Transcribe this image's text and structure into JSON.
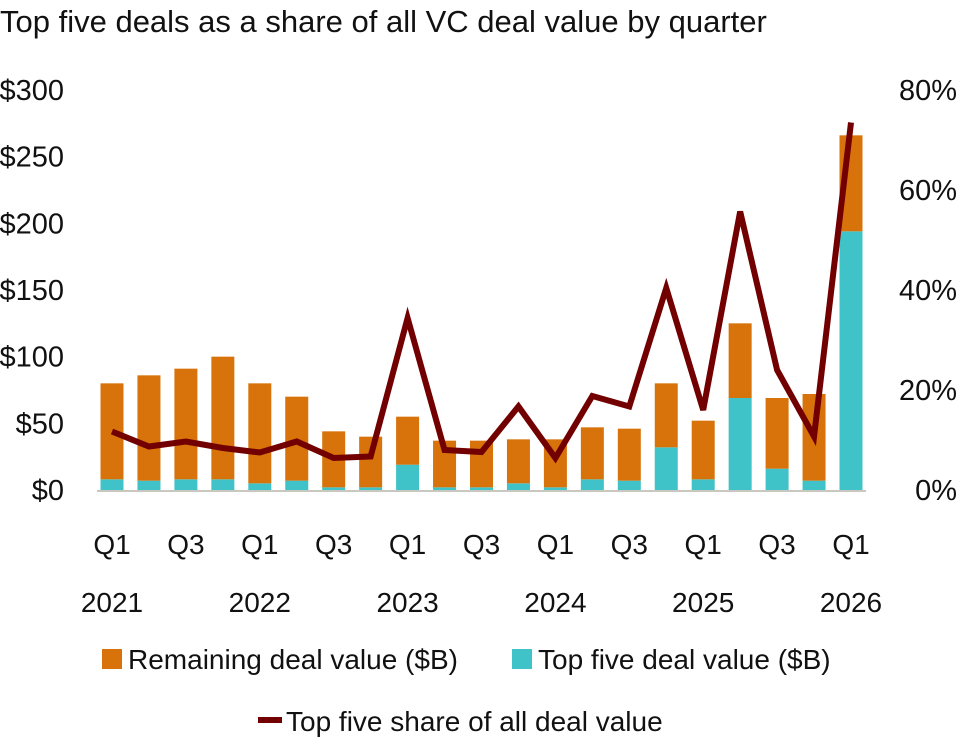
{
  "chart_data": {
    "type": "bar",
    "title": "Top five deals as a share of all VC deal value by quarter",
    "categories": [
      "Q1 2021",
      "Q2 2021",
      "Q3 2021",
      "Q4 2021",
      "Q1 2022",
      "Q2 2022",
      "Q3 2022",
      "Q4 2022",
      "Q1 2023",
      "Q2 2023",
      "Q3 2023",
      "Q4 2023",
      "Q1 2024",
      "Q2 2024",
      "Q3 2024",
      "Q4 2024",
      "Q1 2025",
      "Q2 2025",
      "Q3 2025",
      "Q4 2025",
      "Q1 2026"
    ],
    "x_tick_labels": [
      "Q1",
      "",
      "Q3",
      "",
      "Q1",
      "",
      "Q3",
      "",
      "Q1",
      "",
      "Q3",
      "",
      "Q1",
      "",
      "Q3",
      "",
      "Q1",
      "",
      "Q3",
      "",
      "Q1"
    ],
    "year_labels": [
      "2021",
      "",
      "",
      "",
      "2022",
      "",
      "",
      "",
      "2023",
      "",
      "",
      "",
      "2024",
      "",
      "",
      "",
      "2025",
      "",
      "",
      "",
      "2026"
    ],
    "series": [
      {
        "name": "Top five deal value ($B)",
        "kind": "bar",
        "axis": "left",
        "color": "#40C3C8",
        "values": [
          8,
          7,
          8,
          8,
          5,
          7,
          2,
          2,
          19,
          2,
          2,
          5,
          2,
          8,
          7,
          32,
          8,
          69,
          16,
          7,
          194
        ]
      },
      {
        "name": "Remaining deal value ($B)",
        "kind": "bar",
        "axis": "left",
        "color": "#D7730A",
        "values": [
          72,
          79,
          83,
          92,
          75,
          63,
          42,
          38,
          36,
          35,
          35,
          33,
          36,
          39,
          39,
          48,
          44,
          56,
          53,
          65,
          72
        ]
      },
      {
        "name": "Top five share of all deal value",
        "kind": "line",
        "axis": "right",
        "color": "#730000",
        "values": [
          11.7,
          8.7,
          9.7,
          8.4,
          7.5,
          9.7,
          6.4,
          6.7,
          34.4,
          8,
          7.6,
          16.7,
          6.4,
          18.8,
          16.7,
          40.4,
          16,
          55.7,
          24,
          10.7,
          73.5
        ]
      }
    ],
    "stacked": true,
    "y_left": {
      "ylim": [
        0,
        300
      ],
      "ticks": [
        "$0",
        "$50",
        "$100",
        "$150",
        "$200",
        "$250",
        "$300"
      ]
    },
    "y_right": {
      "ylim": [
        0,
        80
      ],
      "ticks": [
        "0%",
        "20%",
        "40%",
        "60%",
        "80%"
      ]
    },
    "grid": false,
    "legend_placement": "bottom"
  }
}
